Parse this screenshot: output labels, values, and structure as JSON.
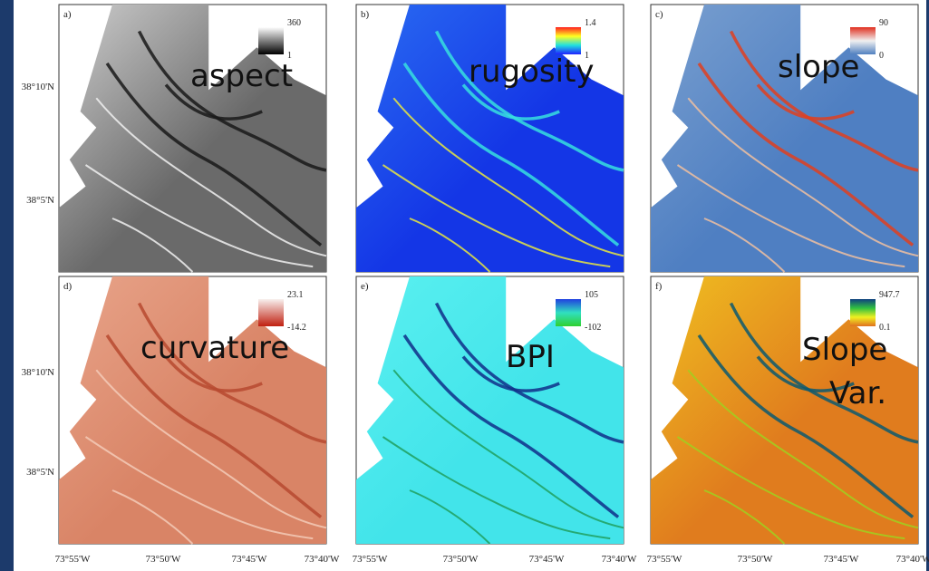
{
  "figure": {
    "panels": [
      {
        "letter": "a)",
        "label": [
          "aspect"
        ],
        "colorbar": {
          "max": "360",
          "min": "1"
        }
      },
      {
        "letter": "b)",
        "label": [
          "rugosity"
        ],
        "colorbar": {
          "max": "1.4",
          "min": "1"
        }
      },
      {
        "letter": "c)",
        "label": [
          "slope"
        ],
        "colorbar": {
          "max": "90",
          "min": "0"
        }
      },
      {
        "letter": "d)",
        "label": [
          "curvature"
        ],
        "colorbar": {
          "max": "23.1",
          "min": "-14.2"
        }
      },
      {
        "letter": "e)",
        "label": [
          "BPI"
        ],
        "colorbar": {
          "max": "105",
          "min": "-102"
        }
      },
      {
        "letter": "f)",
        "label": [
          "Slope",
          "Var."
        ],
        "colorbar": {
          "max": "947.7",
          "min": "0.1"
        }
      }
    ],
    "y_labels": [
      "38°10'N",
      "38°5'N"
    ],
    "x_labels": [
      "73°55'W",
      "73°50'W",
      "73°45'W",
      "73°40'W"
    ]
  }
}
